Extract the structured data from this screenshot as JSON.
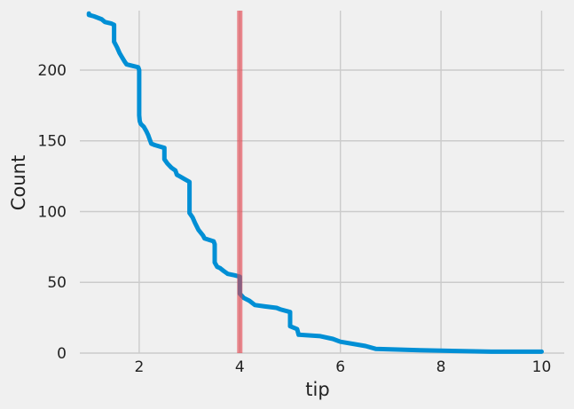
{
  "chart_data": {
    "type": "line",
    "title": "",
    "xlabel": "tip",
    "ylabel": "Count",
    "xlim": [
      0.82,
      10.45
    ],
    "ylim": [
      0,
      242
    ],
    "xticks": [
      2,
      4,
      6,
      8,
      10
    ],
    "xtick_labels": [
      "2",
      "4",
      "6",
      "8",
      "10"
    ],
    "yticks": [
      0,
      50,
      100,
      150,
      200
    ],
    "ytick_labels": [
      "0",
      "50",
      "100",
      "150",
      "200"
    ],
    "grid": true,
    "style": "fivethirtyeight",
    "colors": {
      "line": "#008fd5",
      "vline": "#e5404a",
      "background": "#f0f0f0",
      "grid": "#cbcbcb"
    },
    "vline": {
      "x": 4.0
    },
    "series": [
      {
        "x": [
          1.0,
          1.0,
          1.1,
          1.25,
          1.32,
          1.44,
          1.5,
          1.5,
          1.56,
          1.61,
          1.66,
          1.71,
          1.75,
          1.98,
          2.0,
          2.0,
          2.01,
          2.03,
          2.09,
          2.14,
          2.18,
          2.2,
          2.24,
          2.31,
          2.5,
          2.5,
          2.56,
          2.64,
          2.72,
          2.75,
          2.8,
          2.9,
          3.0,
          3.0,
          3.06,
          3.11,
          3.18,
          3.27,
          3.3,
          3.48,
          3.5,
          3.5,
          3.55,
          3.61,
          3.68,
          3.76,
          3.9,
          4.0,
          4.0,
          4.08,
          4.19,
          4.3,
          4.5,
          4.73,
          4.8,
          5.0,
          5.0,
          5.14,
          5.17,
          5.6,
          5.85,
          6.0,
          6.5,
          6.7,
          7.58,
          9.0,
          10.0
        ],
        "y": [
          240,
          239,
          238,
          236,
          234,
          233,
          232,
          220,
          216,
          212,
          209,
          206,
          204,
          202,
          200,
          168,
          164,
          162,
          160,
          157,
          154,
          152,
          148,
          147,
          145,
          137,
          134,
          131,
          129,
          126,
          125,
          123,
          121,
          99,
          96,
          92,
          87,
          83,
          81,
          79,
          77,
          64,
          61,
          60,
          58,
          56,
          55,
          54,
          42,
          39,
          37,
          34,
          33,
          32,
          31,
          29,
          19,
          17,
          13,
          12,
          10,
          8,
          5,
          3,
          2,
          1,
          1
        ]
      }
    ]
  }
}
